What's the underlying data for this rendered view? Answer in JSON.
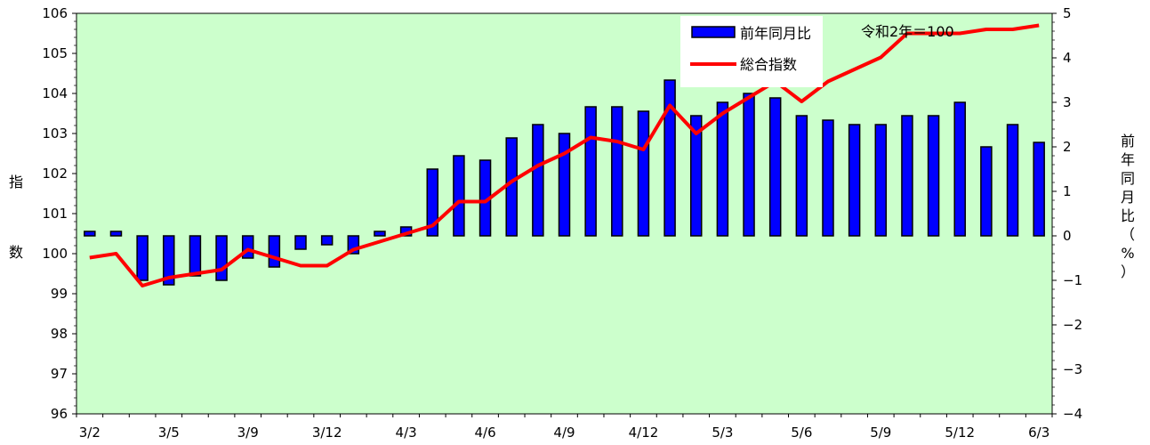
{
  "chart_data": {
    "type": "bar+line",
    "title": "",
    "note": "令和2年＝100",
    "y_left_label_chars": [
      "指",
      "数"
    ],
    "y_right_label_chars": [
      "前",
      "年",
      "同",
      "月",
      "比",
      "（",
      "%",
      "）"
    ],
    "y_left_lim": [
      96,
      106
    ],
    "y_left_ticks": [
      "96",
      "97",
      "98",
      "99",
      "100",
      "101",
      "102",
      "103",
      "104",
      "105",
      "106"
    ],
    "y_right_lim": [
      -4,
      5
    ],
    "y_right_ticks": [
      "−4",
      "−3",
      "−2",
      "−1",
      "0",
      "1",
      "2",
      "3",
      "4",
      "5"
    ],
    "x_tick_labels": [
      "3/2",
      "3/5",
      "3/9",
      "3/12",
      "4/3",
      "4/6",
      "4/9",
      "4/12",
      "5/3",
      "5/6",
      "5/9",
      "5/12",
      "6/3"
    ],
    "x_tick_every": 3,
    "grid": false,
    "legend_position": "top-right",
    "series": [
      {
        "name": "前年同月比",
        "kind": "bar",
        "axis": "right",
        "color": "#0000ff",
        "values": [
          0.1,
          0.1,
          -1.0,
          -1.1,
          -0.9,
          -1.0,
          -0.5,
          -0.7,
          -0.3,
          -0.2,
          -0.4,
          0.1,
          0.2,
          1.5,
          1.8,
          1.7,
          2.2,
          2.5,
          2.3,
          2.9,
          2.9,
          2.8,
          3.5,
          2.7,
          3.0,
          3.2,
          3.1,
          2.7,
          2.6,
          2.5,
          2.5,
          2.7,
          2.7,
          3.0,
          2.0,
          2.5,
          2.1
        ]
      },
      {
        "name": "総合指数",
        "kind": "line",
        "axis": "left",
        "color": "#ff0000",
        "values": [
          99.9,
          100.0,
          99.2,
          99.4,
          99.5,
          99.6,
          100.1,
          99.9,
          99.7,
          99.7,
          100.1,
          100.3,
          100.5,
          100.7,
          101.3,
          101.3,
          101.8,
          102.2,
          102.5,
          102.9,
          102.8,
          102.6,
          103.7,
          103.0,
          103.5,
          103.9,
          104.3,
          103.8,
          104.3,
          104.6,
          104.9,
          105.5,
          105.5,
          105.5,
          105.6,
          105.6,
          105.7
        ]
      }
    ]
  }
}
